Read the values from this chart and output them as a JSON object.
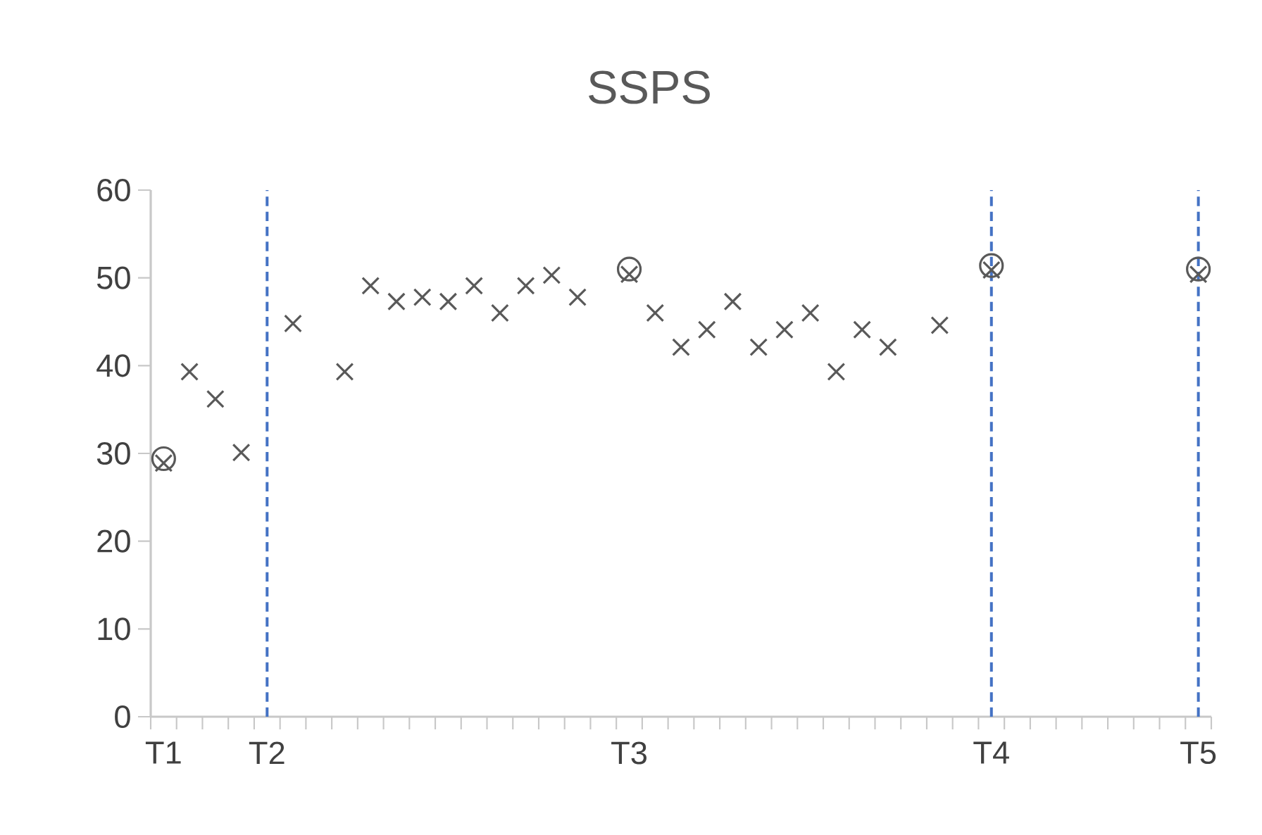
{
  "chart_data": {
    "type": "scatter",
    "title": "SSPS",
    "categories": [
      "T1",
      null,
      null,
      null,
      "T2",
      null,
      null,
      null,
      null,
      null,
      null,
      null,
      null,
      null,
      null,
      null,
      null,
      null,
      "T3",
      null,
      null,
      null,
      null,
      null,
      null,
      null,
      null,
      null,
      null,
      null,
      null,
      null,
      "T4",
      null,
      null,
      null,
      null,
      null,
      null,
      null,
      "T5"
    ],
    "ylim": [
      0,
      60
    ],
    "yticks": [
      0,
      10,
      20,
      30,
      40,
      50,
      60
    ],
    "grid": false,
    "series": [
      {
        "color": "#595959",
        "marker": "cross",
        "values": [
          28.9,
          39.3,
          36.2,
          30.1,
          null,
          44.8,
          null,
          39.3,
          49.1,
          47.3,
          47.8,
          47.3,
          49.1,
          46.0,
          49.1,
          50.3,
          47.8,
          null,
          50.4,
          46.0,
          42.1,
          44.1,
          47.3,
          42.1,
          44.1,
          46.0,
          39.3,
          44.1,
          42.1,
          null,
          44.6,
          null,
          50.9,
          null,
          null,
          null,
          null,
          null,
          null,
          null,
          50.4
        ]
      },
      {
        "color": "#595959",
        "marker": "circle",
        "values": [
          29.4,
          null,
          null,
          null,
          null,
          null,
          null,
          null,
          null,
          null,
          null,
          null,
          null,
          null,
          null,
          null,
          null,
          null,
          51.0,
          null,
          null,
          null,
          null,
          null,
          null,
          null,
          null,
          null,
          null,
          null,
          null,
          null,
          51.4,
          null,
          null,
          null,
          null,
          null,
          null,
          null,
          51.0
        ]
      }
    ],
    "ref_lines": [
      {
        "axis": "x",
        "value": "T2",
        "color": "#4472c4",
        "line_style": "dashed"
      },
      {
        "axis": "x",
        "value": "T4",
        "color": "#4472c4",
        "line_style": "dashed"
      },
      {
        "axis": "x",
        "value": "T5",
        "color": "#4472c4",
        "line_style": "dashed"
      }
    ]
  }
}
